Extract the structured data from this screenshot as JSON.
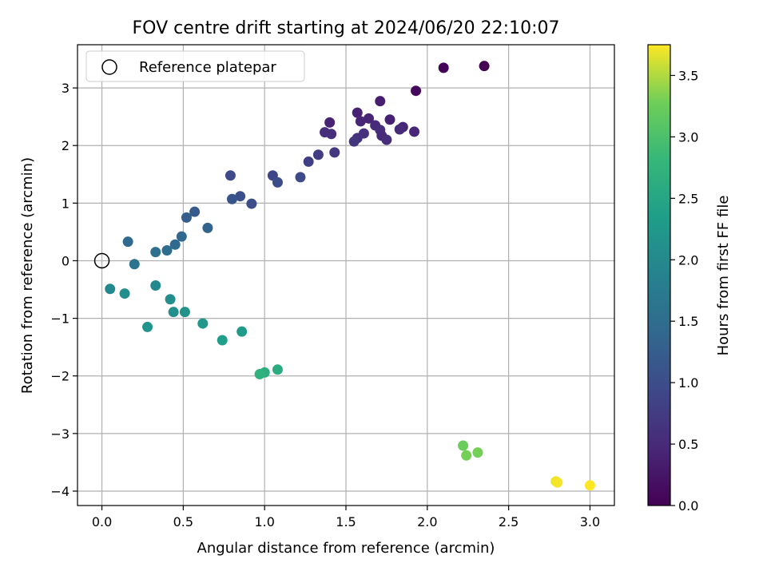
{
  "chart_data": {
    "type": "scatter",
    "title": "FOV centre drift starting at 2024/06/20 22:10:07",
    "xlabel": "Angular distance from reference (arcmin)",
    "ylabel": "Rotation from reference (arcmin)",
    "xlim": [
      -0.15,
      3.15
    ],
    "ylim": [
      -4.25,
      3.75
    ],
    "xticks": [
      0.0,
      0.5,
      1.0,
      1.5,
      2.0,
      2.5,
      3.0
    ],
    "xtick_labels": [
      "0.0",
      "0.5",
      "1.0",
      "1.5",
      "2.0",
      "2.5",
      "3.0"
    ],
    "yticks": [
      -4,
      -3,
      -2,
      -1,
      0,
      1,
      2,
      3
    ],
    "ytick_labels": [
      "−4",
      "−3",
      "−2",
      "−1",
      "0",
      "1",
      "2",
      "3"
    ],
    "grid": true,
    "colormap": "viridis",
    "legend": {
      "position": "top-left",
      "entries": [
        {
          "label": "Reference platepar",
          "marker": "open-circle",
          "x": 0.0,
          "y": 0.0
        }
      ]
    },
    "colorbar": {
      "label": "Hours from first FF file",
      "range": [
        0.0,
        3.75
      ],
      "ticks": [
        0.0,
        0.5,
        1.0,
        1.5,
        2.0,
        2.5,
        3.0,
        3.5
      ],
      "tick_labels": [
        "0.0",
        "0.5",
        "1.0",
        "1.5",
        "2.0",
        "2.5",
        "3.0",
        "3.5"
      ]
    },
    "points": [
      {
        "x": 2.35,
        "y": 3.38,
        "c": 0.0
      },
      {
        "x": 2.1,
        "y": 3.35,
        "c": 0.05
      },
      {
        "x": 1.93,
        "y": 2.95,
        "c": 0.1
      },
      {
        "x": 1.71,
        "y": 2.77,
        "c": 0.35
      },
      {
        "x": 1.57,
        "y": 2.57,
        "c": 0.4
      },
      {
        "x": 1.64,
        "y": 2.47,
        "c": 0.42
      },
      {
        "x": 1.77,
        "y": 2.45,
        "c": 0.38
      },
      {
        "x": 1.59,
        "y": 2.42,
        "c": 0.45
      },
      {
        "x": 1.4,
        "y": 2.4,
        "c": 0.4
      },
      {
        "x": 1.68,
        "y": 2.35,
        "c": 0.5
      },
      {
        "x": 1.85,
        "y": 2.32,
        "c": 0.45
      },
      {
        "x": 1.83,
        "y": 2.28,
        "c": 0.5
      },
      {
        "x": 1.71,
        "y": 2.27,
        "c": 0.55
      },
      {
        "x": 1.92,
        "y": 2.24,
        "c": 0.45
      },
      {
        "x": 1.37,
        "y": 2.23,
        "c": 0.55
      },
      {
        "x": 1.61,
        "y": 2.21,
        "c": 0.6
      },
      {
        "x": 1.41,
        "y": 2.2,
        "c": 0.55
      },
      {
        "x": 1.72,
        "y": 2.17,
        "c": 0.5
      },
      {
        "x": 1.57,
        "y": 2.13,
        "c": 0.6
      },
      {
        "x": 1.75,
        "y": 2.1,
        "c": 0.55
      },
      {
        "x": 1.55,
        "y": 2.07,
        "c": 0.65
      },
      {
        "x": 1.43,
        "y": 1.88,
        "c": 0.7
      },
      {
        "x": 1.33,
        "y": 1.84,
        "c": 0.75
      },
      {
        "x": 1.27,
        "y": 1.72,
        "c": 0.8
      },
      {
        "x": 0.79,
        "y": 1.48,
        "c": 0.95
      },
      {
        "x": 1.05,
        "y": 1.48,
        "c": 0.9
      },
      {
        "x": 1.22,
        "y": 1.45,
        "c": 0.95
      },
      {
        "x": 1.08,
        "y": 1.36,
        "c": 1.0
      },
      {
        "x": 0.85,
        "y": 1.12,
        "c": 1.05
      },
      {
        "x": 0.8,
        "y": 1.07,
        "c": 1.1
      },
      {
        "x": 0.92,
        "y": 0.99,
        "c": 1.0
      },
      {
        "x": 0.57,
        "y": 0.85,
        "c": 1.2
      },
      {
        "x": 0.52,
        "y": 0.75,
        "c": 1.25
      },
      {
        "x": 0.65,
        "y": 0.57,
        "c": 1.35
      },
      {
        "x": 0.49,
        "y": 0.42,
        "c": 1.4
      },
      {
        "x": 0.16,
        "y": 0.33,
        "c": 1.45
      },
      {
        "x": 0.45,
        "y": 0.28,
        "c": 1.45
      },
      {
        "x": 0.4,
        "y": 0.18,
        "c": 1.5
      },
      {
        "x": 0.33,
        "y": 0.15,
        "c": 1.55
      },
      {
        "x": 0.2,
        "y": -0.06,
        "c": 1.6
      },
      {
        "x": 0.05,
        "y": -0.49,
        "c": 2.0
      },
      {
        "x": 0.14,
        "y": -0.57,
        "c": 2.1
      },
      {
        "x": 0.33,
        "y": -0.43,
        "c": 2.0
      },
      {
        "x": 0.42,
        "y": -0.67,
        "c": 2.1
      },
      {
        "x": 0.44,
        "y": -0.89,
        "c": 2.1
      },
      {
        "x": 0.51,
        "y": -0.89,
        "c": 2.15
      },
      {
        "x": 0.28,
        "y": -1.15,
        "c": 2.2
      },
      {
        "x": 0.62,
        "y": -1.09,
        "c": 2.25
      },
      {
        "x": 0.86,
        "y": -1.23,
        "c": 2.3
      },
      {
        "x": 0.74,
        "y": -1.38,
        "c": 2.35
      },
      {
        "x": 1.08,
        "y": -1.89,
        "c": 2.6
      },
      {
        "x": 1.0,
        "y": -1.94,
        "c": 2.65
      },
      {
        "x": 0.97,
        "y": -1.97,
        "c": 2.7
      },
      {
        "x": 2.22,
        "y": -3.21,
        "c": 3.25
      },
      {
        "x": 2.31,
        "y": -3.33,
        "c": 3.3
      },
      {
        "x": 2.24,
        "y": -3.38,
        "c": 3.3
      },
      {
        "x": 2.79,
        "y": -3.83,
        "c": 3.7
      },
      {
        "x": 2.8,
        "y": -3.85,
        "c": 3.72
      },
      {
        "x": 3.0,
        "y": -3.9,
        "c": 3.75
      }
    ]
  }
}
